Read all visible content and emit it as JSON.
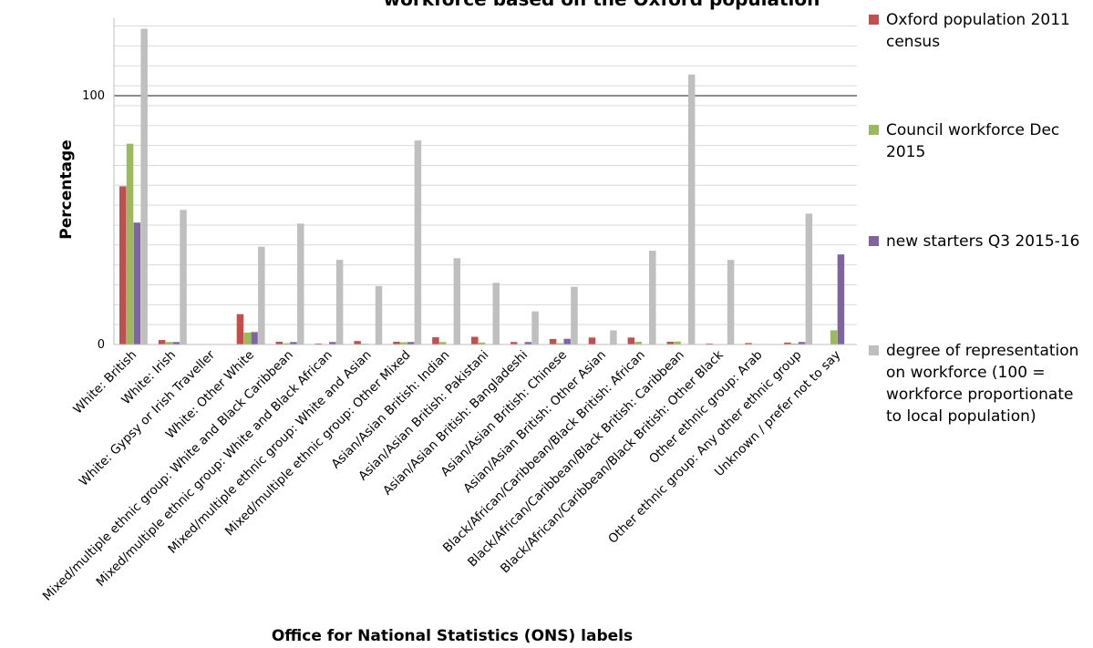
{
  "chart_data": {
    "type": "bar",
    "title": "workforce based on the Oxford population",
    "xlabel": "Office for National Statistics (ONS) labels",
    "ylabel": "Percentage",
    "ylim": [
      0,
      130
    ],
    "yticks": [
      0,
      100
    ],
    "grid": true,
    "legend_position": "right",
    "categories": [
      "White: British",
      "White: Irish",
      "White: Gypsy or Irish Traveller",
      "White: Other White",
      "Mixed/multiple ethnic group: White and Black Caribbean",
      "Mixed/multiple ethnic group: White and Black African",
      "Mixed/multiple ethnic group: White and Asian",
      "Mixed/multiple ethnic group: Other Mixed",
      "Asian/Asian British: Indian",
      "Asian/Asian British: Pakistani",
      "Asian/Asian British: Bangladeshi",
      "Asian/Asian British: Chinese",
      "Asian/Asian British: Other Asian",
      "Black/African/Caribbean/Black British: African",
      "Black/African/Caribbean/Black British: Caribbean",
      "Black/African/Caribbean/Black British: Other Black",
      "Other ethnic group: Arab",
      "Other ethnic group: Any other ethnic group",
      "Unknown / prefer not to say"
    ],
    "series": [
      {
        "name": "Oxford population 2011 census",
        "color": "#c0504d",
        "values": [
          63.6,
          1.8,
          0.2,
          12.2,
          1.1,
          0.4,
          1.4,
          1.1,
          2.9,
          3.1,
          1.0,
          2.2,
          2.8,
          2.8,
          1.1,
          0.4,
          0.6,
          0.8,
          0
        ]
      },
      {
        "name": "Council workforce Dec 2015",
        "color": "#9bbb59",
        "values": [
          80.7,
          1.0,
          0,
          4.8,
          0.5,
          0.1,
          0.3,
          0.9,
          1.0,
          0.8,
          0.1,
          0.5,
          0.2,
          1.1,
          1.2,
          0.1,
          0,
          0.4,
          5.7
        ]
      },
      {
        "name": "new starters Q3 2015-16",
        "color": "#8064a2",
        "values": [
          49.0,
          1.0,
          0,
          5.0,
          1.0,
          1.0,
          0,
          1.0,
          0,
          0,
          1.0,
          2.3,
          0,
          0,
          0,
          0,
          0,
          1.0,
          36.2
        ]
      },
      {
        "name": "degree of representation on workforce (100 = workforce proportionate to local population)",
        "color": "#bfbfbf",
        "values": [
          126.9,
          54.1,
          0,
          39.3,
          48.6,
          34.0,
          23.5,
          82.0,
          34.7,
          24.8,
          13.3,
          23.2,
          5.7,
          37.7,
          108.5,
          34.0,
          0,
          52.6,
          0
        ]
      }
    ]
  },
  "legend": [
    "Oxford population 2011 census",
    "Council workforce Dec 2015",
    "new starters Q3 2015-16",
    "degree of representation on workforce (100 = workforce proportionate to local population)"
  ]
}
